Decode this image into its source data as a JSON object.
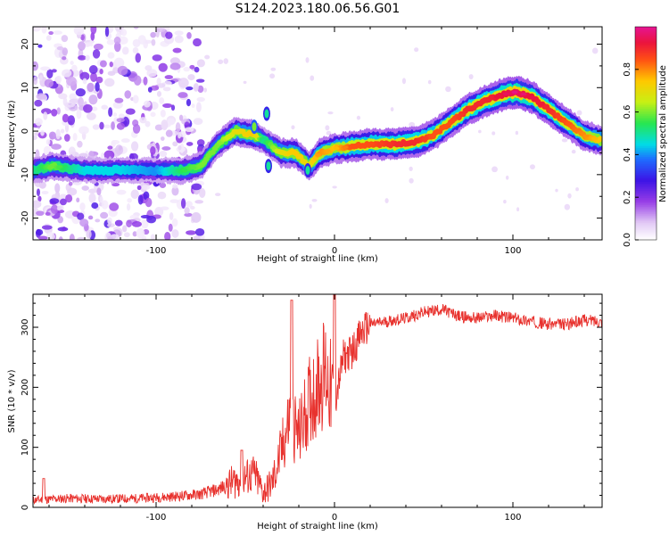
{
  "title": "S124.2023.180.06.56.G01",
  "chart_data": [
    {
      "type": "heatmap",
      "xlabel": "Height of straight line (km)",
      "ylabel": "Frequency (Hz)",
      "xlim": [
        -169,
        150
      ],
      "ylim": [
        -25,
        24
      ],
      "xticks": [
        -100,
        0,
        100
      ],
      "yticks": [
        -20,
        -10,
        0,
        10,
        20
      ],
      "colorbar": {
        "label": "Normalized spectral amplitude",
        "range": [
          0,
          1
        ],
        "ticks": [
          "0.0",
          "0.2",
          "0.4",
          "0.6",
          "0.8"
        ],
        "colormap": "white-violet-blue-cyan-green-yellow-orange-red-magenta"
      },
      "ridge": [
        {
          "x": -169,
          "y": -9,
          "amp": 0.5
        },
        {
          "x": -158,
          "y": -8,
          "amp": 0.6
        },
        {
          "x": -140,
          "y": -9,
          "amp": 0.45
        },
        {
          "x": -120,
          "y": -9,
          "amp": 0.45
        },
        {
          "x": -100,
          "y": -9,
          "amp": 0.4
        },
        {
          "x": -85,
          "y": -9,
          "amp": 0.55
        },
        {
          "x": -75,
          "y": -8,
          "amp": 0.6
        },
        {
          "x": -65,
          "y": -3,
          "amp": 0.6
        },
        {
          "x": -55,
          "y": 0,
          "amp": 0.7
        },
        {
          "x": -45,
          "y": -1,
          "amp": 0.75
        },
        {
          "x": -40,
          "y": -2,
          "amp": 0.5
        },
        {
          "x": -30,
          "y": -5,
          "amp": 0.7
        },
        {
          "x": -22,
          "y": -5,
          "amp": 0.75
        },
        {
          "x": -14,
          "y": -8,
          "amp": 0.7
        },
        {
          "x": -8,
          "y": -5,
          "amp": 0.8
        },
        {
          "x": 0,
          "y": -4,
          "amp": 0.75
        },
        {
          "x": 10,
          "y": -3.5,
          "amp": 0.85
        },
        {
          "x": 20,
          "y": -3,
          "amp": 0.85
        },
        {
          "x": 35,
          "y": -3,
          "amp": 0.9
        },
        {
          "x": 45,
          "y": -2.5,
          "amp": 0.9
        },
        {
          "x": 55,
          "y": -1,
          "amp": 0.85
        },
        {
          "x": 65,
          "y": 2,
          "amp": 0.85
        },
        {
          "x": 75,
          "y": 5,
          "amp": 0.9
        },
        {
          "x": 85,
          "y": 7,
          "amp": 0.9
        },
        {
          "x": 95,
          "y": 8.5,
          "amp": 0.95
        },
        {
          "x": 102,
          "y": 9,
          "amp": 1.0
        },
        {
          "x": 110,
          "y": 8,
          "amp": 0.95
        },
        {
          "x": 120,
          "y": 5,
          "amp": 0.9
        },
        {
          "x": 130,
          "y": 2,
          "amp": 0.85
        },
        {
          "x": 140,
          "y": -1,
          "amp": 0.8
        },
        {
          "x": 148,
          "y": -2,
          "amp": 0.75
        }
      ],
      "noise_region": {
        "x": [
          -169,
          -78
        ],
        "y": [
          -25,
          24
        ]
      },
      "secondary": [
        {
          "x": -45,
          "y": 1,
          "amp": 0.6
        },
        {
          "x": -38,
          "y": 4,
          "amp": 0.5
        },
        {
          "x": -37,
          "y": -8,
          "amp": 0.5
        },
        {
          "x": -15,
          "y": -9,
          "amp": 0.5
        }
      ]
    },
    {
      "type": "line",
      "color": "#e8322e",
      "xlabel": "Height of straight line (km)",
      "ylabel": "SNR (10 * v/v)",
      "xlim": [
        -169,
        150
      ],
      "ylim": [
        0,
        355
      ],
      "xticks": [
        -100,
        0,
        100
      ],
      "yticks": [
        0,
        100,
        200,
        300
      ],
      "x": [
        -169,
        -150,
        -130,
        -110,
        -90,
        -75,
        -65,
        -55,
        -45,
        -40,
        -35,
        -30,
        -25,
        -20,
        -15,
        -10,
        -5,
        0,
        5,
        10,
        15,
        20,
        30,
        40,
        50,
        60,
        70,
        80,
        90,
        100,
        110,
        120,
        130,
        140,
        150
      ],
      "y": [
        12,
        15,
        14,
        15,
        18,
        22,
        30,
        45,
        55,
        25,
        40,
        90,
        150,
        120,
        170,
        200,
        230,
        170,
        250,
        260,
        290,
        305,
        310,
        315,
        325,
        330,
        318,
        315,
        320,
        315,
        310,
        305,
        305,
        312,
        310
      ],
      "peaks": [
        {
          "x": -163,
          "y": 48
        },
        {
          "x": -52,
          "y": 95
        },
        {
          "x": -24,
          "y": 345
        },
        {
          "x": 0,
          "y": 355
        }
      ]
    }
  ]
}
